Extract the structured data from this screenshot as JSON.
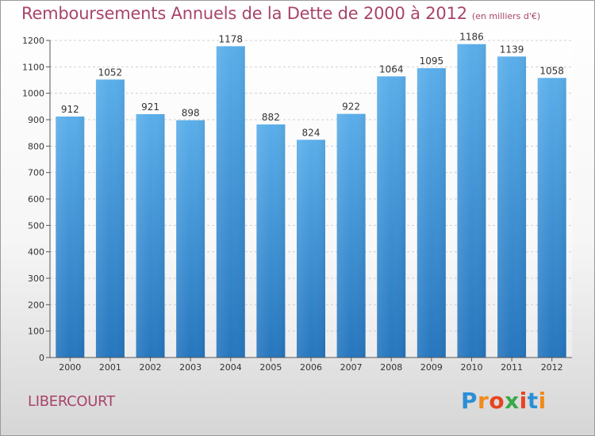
{
  "title": "Remboursements Annuels de la Dette de 2000 à 2012",
  "unit": "(en milliers d'€)",
  "commune": "LIBERCOURT",
  "logo": {
    "letters": [
      "P",
      "r",
      "o",
      "x",
      "i",
      "t",
      "i"
    ],
    "colors": [
      "#2b8fd6",
      "#f08a1c",
      "#e8441f",
      "#3aa84a",
      "#e8441f",
      "#2b8fd6",
      "#f08a1c"
    ]
  },
  "chart_data": {
    "type": "bar",
    "title": "Remboursements Annuels de la Dette de 2000 à 2012",
    "xlabel": "",
    "ylabel": "",
    "categories": [
      "2000",
      "2001",
      "2002",
      "2003",
      "2004",
      "2005",
      "2006",
      "2007",
      "2008",
      "2009",
      "2010",
      "2011",
      "2012"
    ],
    "values": [
      912,
      1052,
      921,
      898,
      1178,
      882,
      824,
      922,
      1064,
      1095,
      1186,
      1139,
      1058
    ],
    "ylim": [
      0,
      1200
    ],
    "yticks": [
      0,
      100,
      200,
      300,
      400,
      500,
      600,
      700,
      800,
      900,
      1000,
      1100,
      1200
    ],
    "grid": true,
    "bar_color": "#3a8fd8"
  }
}
